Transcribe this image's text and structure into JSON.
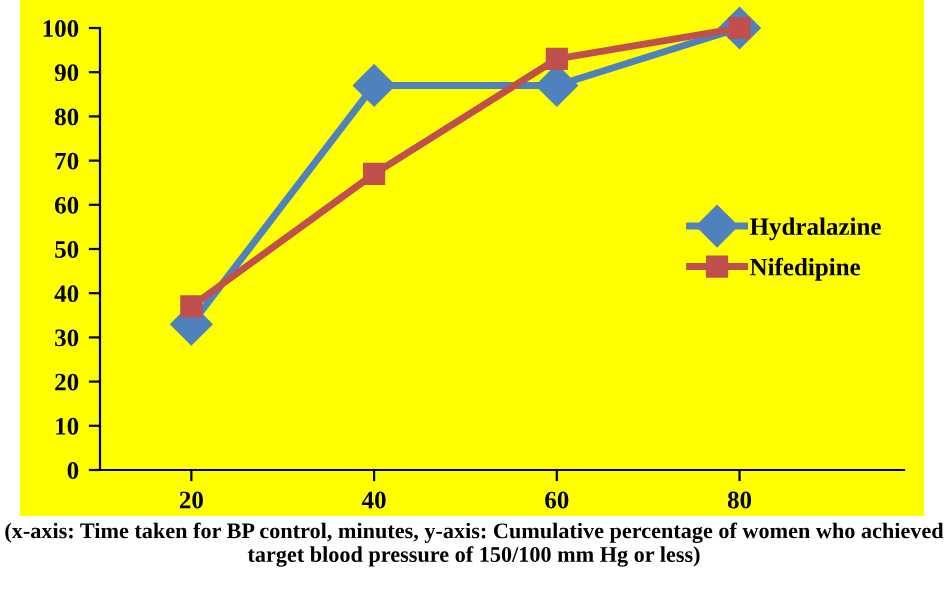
{
  "chart_data": {
    "type": "line",
    "categories": [
      "20",
      "40",
      "60",
      "80"
    ],
    "series": [
      {
        "name": "Hydralazine",
        "color": "#4f81bd",
        "values": [
          33,
          87,
          87,
          100
        ],
        "marker": "diamond"
      },
      {
        "name": "Nifedipine",
        "color": "#c0504d",
        "values": [
          37,
          67,
          93,
          100
        ],
        "marker": "square"
      }
    ],
    "ylim": [
      0,
      100
    ],
    "yticks": [
      0,
      10,
      20,
      30,
      40,
      50,
      60,
      70,
      80,
      90,
      100
    ],
    "grid": false,
    "legend": "right",
    "annotations": [
      "(x-axis: Time taken for BP control, minutes, y-axis: Cumulative percentage of women who achieved target blood pressure of 150/100 mm Hg or less)"
    ]
  }
}
